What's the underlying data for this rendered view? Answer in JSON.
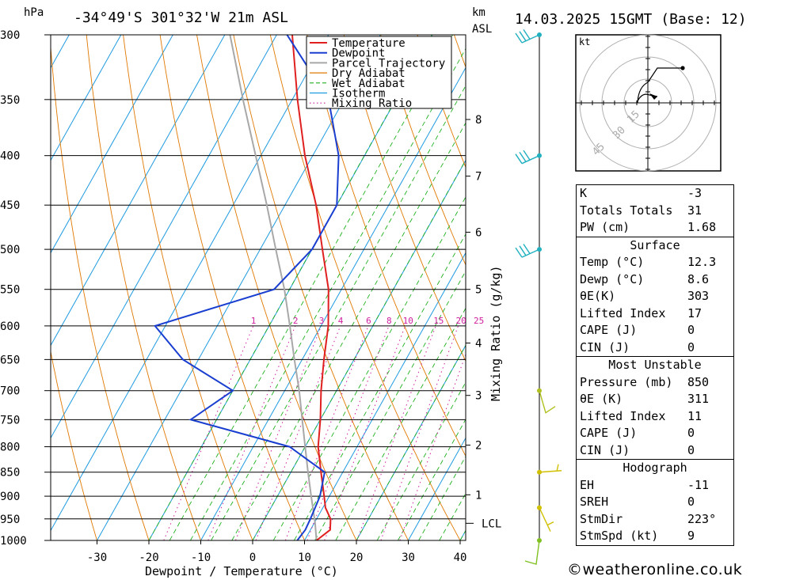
{
  "header": {
    "pressure_unit": "hPa",
    "location": "-34°49'S  301°32'W  21m  ASL",
    "km_unit": "km",
    "asl_unit": "ASL",
    "datetime": "14.03.2025  15GMT  (Base: 12)"
  },
  "chart_data": {
    "type": "line",
    "xlabel": "Dewpoint / Temperature (°C)",
    "ylabel": "hPa",
    "xlim": [
      -40,
      40
    ],
    "ylim": [
      1000,
      300
    ],
    "y_scale": "log-pressure (skew-T)",
    "x_ticks": [
      -30,
      -20,
      -10,
      0,
      10,
      20,
      30,
      40
    ],
    "pressure_levels": [
      300,
      350,
      400,
      450,
      500,
      550,
      600,
      650,
      700,
      750,
      800,
      850,
      900,
      950,
      1000
    ],
    "km_ticks": [
      {
        "label": "8",
        "p": 367
      },
      {
        "label": "7",
        "p": 420
      },
      {
        "label": "6",
        "p": 480
      },
      {
        "label": "5",
        "p": 550
      },
      {
        "label": "4",
        "p": 625
      },
      {
        "label": "3",
        "p": 708
      },
      {
        "label": "2",
        "p": 797
      },
      {
        "label": "1",
        "p": 897
      }
    ],
    "lcl": {
      "label": "LCL",
      "p": 960
    },
    "mixing_ratio_label": "Mixing Ratio (g/kg)",
    "mixing_ratio_values": [
      "1",
      "2",
      "3",
      "4",
      "6",
      "8",
      "10",
      "15",
      "20",
      "25"
    ],
    "series": [
      {
        "name": "Temperature",
        "color": "#e02020",
        "points": [
          [
            1000,
            12.3
          ],
          [
            975,
            13.8
          ],
          [
            950,
            12.7
          ],
          [
            925,
            10.5
          ],
          [
            900,
            9.0
          ],
          [
            850,
            5.8
          ],
          [
            800,
            2.5
          ],
          [
            750,
            0.0
          ],
          [
            700,
            -3.0
          ],
          [
            650,
            -5.8
          ],
          [
            600,
            -8.6
          ],
          [
            550,
            -12.5
          ],
          [
            500,
            -18.0
          ],
          [
            450,
            -24.0
          ],
          [
            400,
            -31.5
          ],
          [
            350,
            -39.0
          ],
          [
            300,
            -47.0
          ]
        ]
      },
      {
        "name": "Dewpoint",
        "color": "#1a3fd0",
        "points": [
          [
            1000,
            8.6
          ],
          [
            975,
            9.0
          ],
          [
            950,
            8.8
          ],
          [
            900,
            8.2
          ],
          [
            850,
            6.5
          ],
          [
            800,
            -3.0
          ],
          [
            750,
            -25.0
          ],
          [
            700,
            -20.0
          ],
          [
            650,
            -33.0
          ],
          [
            600,
            -42.0
          ],
          [
            550,
            -23.0
          ],
          [
            500,
            -20.0
          ],
          [
            450,
            -20.0
          ],
          [
            400,
            -25.0
          ],
          [
            350,
            -33.0
          ],
          [
            300,
            -48.0
          ]
        ]
      },
      {
        "name": "Parcel Trajectory",
        "color": "#a8a8a8",
        "points": [
          [
            1000,
            12.3
          ],
          [
            960,
            10.2
          ],
          [
            900,
            6.5
          ],
          [
            850,
            3.3
          ],
          [
            800,
            0.0
          ],
          [
            750,
            -3.5
          ],
          [
            700,
            -7.2
          ],
          [
            650,
            -11.5
          ],
          [
            600,
            -16.0
          ],
          [
            550,
            -21.0
          ],
          [
            500,
            -27.0
          ],
          [
            450,
            -33.5
          ],
          [
            400,
            -41.0
          ],
          [
            350,
            -49.5
          ],
          [
            300,
            -59.0
          ]
        ]
      }
    ],
    "legend": [
      {
        "name": "Temperature",
        "color": "#e02020",
        "style": "solid"
      },
      {
        "name": "Dewpoint",
        "color": "#1a3fd0",
        "style": "solid"
      },
      {
        "name": "Parcel Trajectory",
        "color": "#a8a8a8",
        "style": "solid"
      },
      {
        "name": "Dry Adiabat",
        "color": "#e07800",
        "style": "solid"
      },
      {
        "name": "Wet Adiabat",
        "color": "#20b020",
        "style": "dashed"
      },
      {
        "name": "Isotherm",
        "color": "#1e9ae0",
        "style": "solid"
      },
      {
        "name": "Mixing Ratio",
        "color": "#d020a0",
        "style": "dotted"
      }
    ],
    "legend_position": "top-right",
    "wind_barbs": [
      300,
      400,
      500,
      700,
      850,
      925,
      1000
    ],
    "hodograph": {
      "unit": "kt",
      "rings": [
        "15",
        "30",
        "45"
      ]
    }
  },
  "indices": {
    "basic": [
      {
        "label": "K",
        "value": "-3"
      },
      {
        "label": "Totals Totals",
        "value": "31"
      },
      {
        "label": "PW (cm)",
        "value": "1.68"
      }
    ],
    "surface": {
      "title": "Surface",
      "rows": [
        {
          "label": "Temp (°C)",
          "value": "12.3"
        },
        {
          "label": "Dewp (°C)",
          "value": "8.6"
        },
        {
          "label": "θE(K)",
          "value": "303"
        },
        {
          "label": "Lifted Index",
          "value": "17"
        },
        {
          "label": "CAPE (J)",
          "value": "0"
        },
        {
          "label": "CIN (J)",
          "value": "0"
        }
      ]
    },
    "most_unstable": {
      "title": "Most Unstable",
      "rows": [
        {
          "label": "Pressure (mb)",
          "value": "850"
        },
        {
          "label": "θE (K)",
          "value": "311"
        },
        {
          "label": "Lifted Index",
          "value": "11"
        },
        {
          "label": "CAPE (J)",
          "value": "0"
        },
        {
          "label": "CIN (J)",
          "value": "0"
        }
      ]
    },
    "hodograph": {
      "title": "Hodograph",
      "rows": [
        {
          "label": "EH",
          "value": "-11"
        },
        {
          "label": "SREH",
          "value": "0"
        },
        {
          "label": "StmDir",
          "value": "223°"
        },
        {
          "label": "StmSpd (kt)",
          "value": "9"
        }
      ]
    }
  },
  "credit": "©weatheronline.co.uk"
}
